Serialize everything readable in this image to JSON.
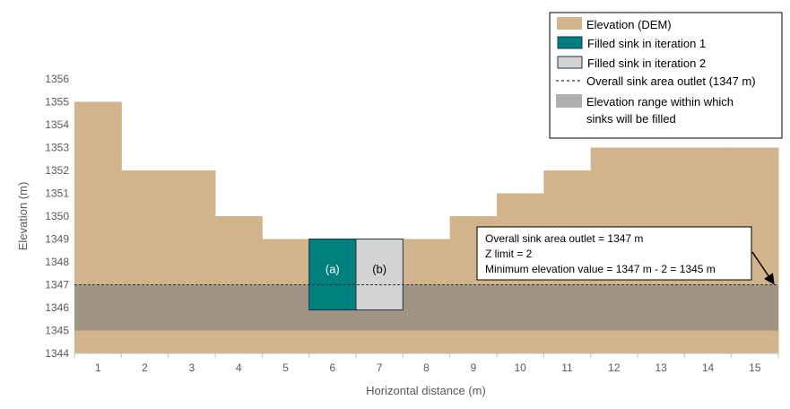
{
  "chart_data": {
    "type": "bar",
    "title": "",
    "xlabel": "Horizontal distance (m)",
    "ylabel": "Elevation (m)",
    "ylim": [
      1344,
      1356
    ],
    "yticks": [
      1344,
      1345,
      1346,
      1347,
      1348,
      1349,
      1350,
      1351,
      1352,
      1353,
      1354,
      1355,
      1356
    ],
    "categories": [
      "1",
      "2",
      "3",
      "4",
      "5",
      "6",
      "7",
      "8",
      "9",
      "10",
      "11",
      "12",
      "13",
      "14",
      "15"
    ],
    "series": [
      {
        "name": "Elevation (DEM)",
        "color": "#d2b48c",
        "values": [
          1355,
          1352,
          1352,
          1350,
          1349,
          1345.9,
          1345.9,
          1349,
          1350,
          1351,
          1352,
          1353,
          1353,
          1353,
          1353
        ]
      },
      {
        "name": "Filled sink in iteration 1",
        "color": "#007f7f",
        "category": "6",
        "range": [
          1345.9,
          1349
        ],
        "label": "(a)"
      },
      {
        "name": "Filled sink in iteration 2",
        "color": "#d4d4d4",
        "category": "7",
        "range": [
          1345.9,
          1349
        ],
        "label": "(b)"
      }
    ],
    "outlet": {
      "name": "Overall sink area outlet (1347 m)",
      "value": 1347
    },
    "fill_range": {
      "name": "Elevation range within which sinks will be filled",
      "range": [
        1345,
        1347
      ],
      "color": "#a09484"
    },
    "legend": {
      "placement": "top-right",
      "items": [
        {
          "label": "Elevation (DEM)",
          "swatch": "#d2b48c"
        },
        {
          "label": "Filled sink in iteration 1",
          "swatch": "#007f7f"
        },
        {
          "label": "Filled sink in iteration 2",
          "swatch": "#d4d4d4"
        },
        {
          "label": "Overall sink area outlet (1347 m)",
          "swatch": "dashed"
        },
        {
          "label": "Elevation range within which",
          "label2": "sinks will be filled",
          "swatch": "#b0b0b0"
        }
      ]
    },
    "annotation": {
      "lines": [
        "Overall sink area outlet = 1347 m",
        "Z limit = 2",
        "Minimum elevation value = 1347 m - 2 = 1345 m"
      ]
    }
  }
}
